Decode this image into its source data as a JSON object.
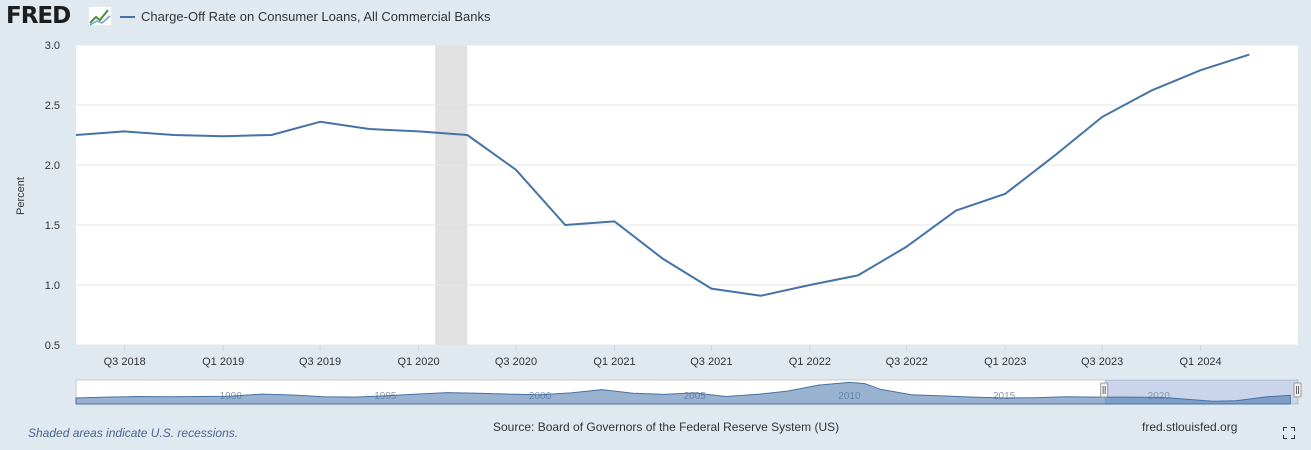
{
  "header": {
    "logo_text": "FRED",
    "title": "Charge-Off Rate on Consumer Loans, All Commercial Banks"
  },
  "footer": {
    "recession_note": "Shaded areas indicate U.S. recessions.",
    "source": "Source: Board of Governors of the Federal Reserve System (US)",
    "site": "fred.stlouisfed.org"
  },
  "colors": {
    "line": "#4572a7",
    "recession": "#e1e1e1",
    "background": "#e1e9f0"
  },
  "icons": {
    "fullscreen": "fullscreen-icon",
    "logo": "fred-graph-icon"
  },
  "chart_data": {
    "type": "line",
    "title": "Charge-Off Rate on Consumer Loans, All Commercial Banks",
    "ylabel": "Percent",
    "xlabel": "",
    "ylim": [
      0.5,
      3.0
    ],
    "xlim": [
      "2018-04-01",
      "2024-07-01"
    ],
    "yticks": [
      "0.5",
      "1.0",
      "1.5",
      "2.0",
      "2.5",
      "3.0"
    ],
    "xticks": [
      {
        "label": "Q3 2018",
        "date": "2018-07-01"
      },
      {
        "label": "Q1 2019",
        "date": "2019-01-01"
      },
      {
        "label": "Q3 2019",
        "date": "2019-07-01"
      },
      {
        "label": "Q1 2020",
        "date": "2020-01-01"
      },
      {
        "label": "Q3 2020",
        "date": "2020-07-01"
      },
      {
        "label": "Q1 2021",
        "date": "2021-01-01"
      },
      {
        "label": "Q3 2021",
        "date": "2021-07-01"
      },
      {
        "label": "Q1 2022",
        "date": "2022-01-01"
      },
      {
        "label": "Q3 2022",
        "date": "2022-07-01"
      },
      {
        "label": "Q1 2023",
        "date": "2023-01-01"
      },
      {
        "label": "Q3 2023",
        "date": "2023-07-01"
      },
      {
        "label": "Q1 2024",
        "date": "2024-01-01"
      }
    ],
    "grid": true,
    "recession": {
      "start": "2020-02-01",
      "end": "2020-04-01"
    },
    "series": [
      {
        "name": "Charge-Off Rate on Consumer Loans, All Commercial Banks",
        "points": [
          {
            "x": "2018-04-01",
            "y": 2.25
          },
          {
            "x": "2018-07-01",
            "y": 2.28
          },
          {
            "x": "2018-10-01",
            "y": 2.25
          },
          {
            "x": "2019-01-01",
            "y": 2.24
          },
          {
            "x": "2019-04-01",
            "y": 2.25
          },
          {
            "x": "2019-07-01",
            "y": 2.36
          },
          {
            "x": "2019-10-01",
            "y": 2.3
          },
          {
            "x": "2020-01-01",
            "y": 2.28
          },
          {
            "x": "2020-04-01",
            "y": 2.25
          },
          {
            "x": "2020-07-01",
            "y": 1.96
          },
          {
            "x": "2020-10-01",
            "y": 1.5
          },
          {
            "x": "2021-01-01",
            "y": 1.53
          },
          {
            "x": "2021-04-01",
            "y": 1.22
          },
          {
            "x": "2021-07-01",
            "y": 0.97
          },
          {
            "x": "2021-10-01",
            "y": 0.91
          },
          {
            "x": "2022-01-01",
            "y": 1.0
          },
          {
            "x": "2022-04-01",
            "y": 1.08
          },
          {
            "x": "2022-07-01",
            "y": 1.32
          },
          {
            "x": "2022-10-01",
            "y": 1.62
          },
          {
            "x": "2023-01-01",
            "y": 1.76
          },
          {
            "x": "2023-04-01",
            "y": 2.07
          },
          {
            "x": "2023-07-01",
            "y": 2.4
          },
          {
            "x": "2023-10-01",
            "y": 2.62
          },
          {
            "x": "2024-01-01",
            "y": 2.79
          },
          {
            "x": "2024-04-01",
            "y": 2.92
          }
        ]
      }
    ]
  },
  "navigator": {
    "year_labels": [
      "1990",
      "1995",
      "2000",
      "2005",
      "2010",
      "2015",
      "2020"
    ],
    "range_start": 1985,
    "range_end": 2024.5,
    "selected_start": 2018.25,
    "selected_end": 2024.5,
    "overview": [
      {
        "x": 1985,
        "y": 2.0
      },
      {
        "x": 1986,
        "y": 2.3
      },
      {
        "x": 1987,
        "y": 2.5
      },
      {
        "x": 1988,
        "y": 2.4
      },
      {
        "x": 1989,
        "y": 2.5
      },
      {
        "x": 1990,
        "y": 2.6
      },
      {
        "x": 1991,
        "y": 3.3
      },
      {
        "x": 1992,
        "y": 3.0
      },
      {
        "x": 1993,
        "y": 2.4
      },
      {
        "x": 1994,
        "y": 2.3
      },
      {
        "x": 1995,
        "y": 2.7
      },
      {
        "x": 1996,
        "y": 3.3
      },
      {
        "x": 1997,
        "y": 3.8
      },
      {
        "x": 1998,
        "y": 3.6
      },
      {
        "x": 1999,
        "y": 3.3
      },
      {
        "x": 2000,
        "y": 3.1
      },
      {
        "x": 2001,
        "y": 3.7
      },
      {
        "x": 2002,
        "y": 4.8
      },
      {
        "x": 2003,
        "y": 3.6
      },
      {
        "x": 2004,
        "y": 3.2
      },
      {
        "x": 2005,
        "y": 3.7
      },
      {
        "x": 2006,
        "y": 2.5
      },
      {
        "x": 2007,
        "y": 3.2
      },
      {
        "x": 2008,
        "y": 4.3
      },
      {
        "x": 2009,
        "y": 6.3
      },
      {
        "x": 2010,
        "y": 7.2
      },
      {
        "x": 2010.5,
        "y": 6.8
      },
      {
        "x": 2011,
        "y": 4.9
      },
      {
        "x": 2012,
        "y": 3.1
      },
      {
        "x": 2013,
        "y": 2.7
      },
      {
        "x": 2014,
        "y": 2.3
      },
      {
        "x": 2015,
        "y": 2.0
      },
      {
        "x": 2016,
        "y": 2.1
      },
      {
        "x": 2017,
        "y": 2.4
      },
      {
        "x": 2018,
        "y": 2.3
      },
      {
        "x": 2019,
        "y": 2.3
      },
      {
        "x": 2020,
        "y": 2.2
      },
      {
        "x": 2020.5,
        "y": 1.9
      },
      {
        "x": 2021,
        "y": 1.5
      },
      {
        "x": 2021.75,
        "y": 0.9
      },
      {
        "x": 2022.5,
        "y": 1.1
      },
      {
        "x": 2023.5,
        "y": 2.4
      },
      {
        "x": 2024.25,
        "y": 2.9
      }
    ]
  }
}
